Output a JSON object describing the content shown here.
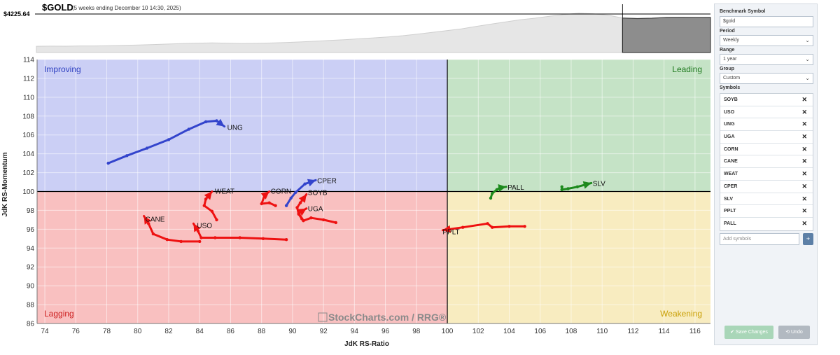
{
  "benchmark": {
    "symbol": "$GOLD",
    "subtitle": "(5 weeks ending December 10 14:30, 2025)",
    "price": "$4225.64"
  },
  "chart_data": {
    "type": "scatter",
    "title": "",
    "xlabel": "JdK RS-Ratio",
    "ylabel": "JdK RS-Momentum",
    "xlim": [
      73.5,
      117
    ],
    "ylim": [
      86,
      114
    ],
    "center": [
      100,
      100
    ],
    "x_ticks": [
      74,
      76,
      78,
      80,
      82,
      84,
      86,
      88,
      90,
      92,
      94,
      96,
      98,
      100,
      102,
      104,
      106,
      108,
      110,
      112,
      114,
      116
    ],
    "y_ticks": [
      86,
      88,
      90,
      92,
      94,
      96,
      98,
      100,
      102,
      104,
      106,
      108,
      110,
      112,
      114
    ],
    "quadrants": {
      "improving": {
        "label": "Improving",
        "color": "#cbcff5",
        "label_color": "#2d3fc0"
      },
      "leading": {
        "label": "Leading",
        "color": "#c5e3c6",
        "label_color": "#1f7a1f"
      },
      "lagging": {
        "label": "Lagging",
        "color": "#f9c0c0",
        "label_color": "#cc1f1f"
      },
      "weakening": {
        "label": "Weakening",
        "color": "#f8ecc0",
        "label_color": "#c9a007"
      }
    },
    "watermark": "StockCharts.com / RRG®",
    "series": [
      {
        "name": "UNG",
        "color": "#3344cc",
        "points": [
          [
            78.1,
            103.0
          ],
          [
            79.3,
            103.8
          ],
          [
            80.6,
            104.6
          ],
          [
            82.0,
            105.5
          ],
          [
            83.3,
            106.6
          ],
          [
            84.4,
            107.4
          ],
          [
            85.1,
            107.5
          ],
          [
            85.6,
            106.9
          ]
        ]
      },
      {
        "name": "CPER",
        "color": "#3344cc",
        "points": [
          [
            89.6,
            98.5
          ],
          [
            89.9,
            99.3
          ],
          [
            90.2,
            99.9
          ],
          [
            90.8,
            100.8
          ],
          [
            91.5,
            101.2
          ]
        ]
      },
      {
        "name": "WEAT",
        "color": "#ee1111",
        "points": [
          [
            85.1,
            97.0
          ],
          [
            84.8,
            97.9
          ],
          [
            84.3,
            98.5
          ],
          [
            84.4,
            99.2
          ],
          [
            84.8,
            100.0
          ]
        ]
      },
      {
        "name": "CORN",
        "color": "#ee1111",
        "points": [
          [
            88.9,
            98.5
          ],
          [
            88.5,
            98.8
          ],
          [
            88.0,
            98.7
          ],
          [
            88.2,
            99.6
          ],
          [
            88.5,
            100.0
          ]
        ]
      },
      {
        "name": "SOYB",
        "color": "#ee1111",
        "points": [
          [
            90.6,
            97.1
          ],
          [
            90.4,
            97.6
          ],
          [
            90.3,
            98.3
          ],
          [
            90.5,
            98.8
          ],
          [
            90.9,
            99.7
          ]
        ]
      },
      {
        "name": "UGA",
        "color": "#ee1111",
        "points": [
          [
            92.8,
            96.7
          ],
          [
            92.0,
            97.0
          ],
          [
            91.2,
            97.2
          ],
          [
            90.7,
            96.9
          ],
          [
            90.4,
            97.7
          ],
          [
            90.9,
            98.2
          ]
        ]
      },
      {
        "name": "CANE",
        "color": "#ee1111",
        "points": [
          [
            84.0,
            94.7
          ],
          [
            82.8,
            94.7
          ],
          [
            81.9,
            94.9
          ],
          [
            81.0,
            95.5
          ],
          [
            80.7,
            96.6
          ],
          [
            80.4,
            97.4
          ]
        ]
      },
      {
        "name": "USO",
        "color": "#ee1111",
        "points": [
          [
            89.6,
            94.9
          ],
          [
            88.1,
            95.0
          ],
          [
            86.6,
            95.1
          ],
          [
            85.0,
            95.1
          ],
          [
            84.1,
            95.1
          ],
          [
            83.9,
            95.8
          ],
          [
            83.6,
            96.6
          ]
        ]
      },
      {
        "name": "PPLT",
        "color": "#ee1111",
        "points": [
          [
            105.0,
            96.3
          ],
          [
            104.0,
            96.3
          ],
          [
            102.9,
            96.2
          ],
          [
            102.6,
            96.6
          ],
          [
            101.0,
            96.2
          ],
          [
            99.7,
            95.9
          ]
        ]
      },
      {
        "name": "PALL",
        "color": "#1d8a1d",
        "points": [
          [
            102.8,
            99.3
          ],
          [
            102.9,
            99.8
          ],
          [
            103.2,
            100.2
          ],
          [
            103.4,
            100.4
          ],
          [
            103.8,
            100.5
          ]
        ]
      },
      {
        "name": "SLV",
        "color": "#1d8a1d",
        "points": [
          [
            107.4,
            100.5
          ],
          [
            107.4,
            100.2
          ],
          [
            107.8,
            100.3
          ],
          [
            108.4,
            100.5
          ],
          [
            109.3,
            100.9
          ]
        ]
      }
    ],
    "label_offsets": {
      "UNG": [
        4,
        1
      ],
      "CPER": [
        2,
        0
      ],
      "WEAT": [
        4,
        -1
      ],
      "CORN": [
        2,
        -1
      ],
      "SOYB": [
        2,
        -3
      ],
      "UGA": [
        2,
        0
      ],
      "CANE": [
        2,
        4
      ],
      "USO": [
        5,
        2
      ],
      "PPLT": [
        0,
        2
      ],
      "PALL": [
        2,
        0
      ],
      "SLV": [
        2,
        0
      ]
    }
  },
  "benchmark_chart": {
    "type": "area",
    "values": [
      3300,
      3305,
      3302,
      3310,
      3312,
      3320,
      3330,
      3340,
      3355,
      3372,
      3390,
      3400,
      3408,
      3400,
      3390,
      3395,
      3405,
      3420,
      3440,
      3462,
      3487,
      3512,
      3540,
      3570,
      3600,
      3640,
      3690,
      3745,
      3800,
      3860,
      3935,
      4010,
      4080,
      4150,
      4200,
      4260,
      4320,
      4360,
      4340,
      4300,
      4205,
      4190,
      4200,
      4225,
      4230,
      4228,
      4225
    ],
    "highlight_from_index": 40
  },
  "panel": {
    "benchmark_label": "Benchmark Symbol",
    "benchmark_value": "$gold",
    "period_label": "Period",
    "period_value": "Weekly",
    "range_label": "Range",
    "range_value": "1 year",
    "group_label": "Group",
    "group_value": "Custom",
    "symbols_label": "Symbols",
    "symbols": [
      "SOYB",
      "USO",
      "UNG",
      "UGA",
      "CORN",
      "CANE",
      "WEAT",
      "CPER",
      "SLV",
      "PPLT",
      "PALL"
    ],
    "remove_glyph": "✕",
    "chevron_glyph": "⌄",
    "add_placeholder": "Add symbols",
    "add_button": "+",
    "save_button": "✔ Save Changes",
    "undo_button": "⟲ Undo"
  }
}
